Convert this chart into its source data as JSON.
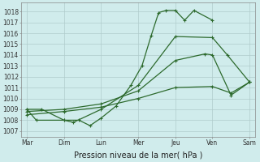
{
  "bg_color": "#d0ecec",
  "grid_color": "#b0cccc",
  "line_color": "#2d6a2d",
  "xlabel": "Pression niveau de la mer( hPa )",
  "xticks": [
    "Mar",
    "Dim",
    "Lun",
    "Mer",
    "Jeu",
    "Ven",
    "Sam"
  ],
  "ylim": [
    1006.5,
    1018.8
  ],
  "xlim": [
    -0.15,
    6.15
  ],
  "yticks": [
    1007,
    1008,
    1009,
    1010,
    1011,
    1012,
    1013,
    1014,
    1015,
    1016,
    1017,
    1018
  ],
  "line1_x": [
    0,
    0.25,
    1.0,
    1.4,
    1.7,
    2.0,
    2.4,
    2.8,
    3.1,
    3.35,
    3.55,
    3.75,
    4.0,
    4.25,
    4.5,
    5.0
  ],
  "line1_y": [
    1009.0,
    1008.0,
    1008.0,
    1008.0,
    1007.5,
    1008.2,
    1009.3,
    1011.2,
    1013.0,
    1015.8,
    1017.9,
    1018.1,
    1018.1,
    1017.2,
    1018.1,
    1017.2
  ],
  "line2_x": [
    0,
    0.4,
    1.0,
    1.25,
    2.0,
    3.0,
    4.0,
    5.0,
    5.4,
    6.0
  ],
  "line2_y": [
    1009.0,
    1009.0,
    1008.0,
    1007.8,
    1009.0,
    1011.2,
    1015.7,
    1015.6,
    1014.0,
    1011.5
  ],
  "line3_x": [
    0,
    1.0,
    2.0,
    3.0,
    4.0,
    4.8,
    5.0,
    5.5,
    6.0
  ],
  "line3_y": [
    1008.8,
    1009.0,
    1009.5,
    1010.7,
    1013.5,
    1014.1,
    1014.0,
    1010.3,
    1011.5
  ],
  "line4_x": [
    0,
    1.0,
    2.0,
    3.0,
    4.0,
    5.0,
    5.5,
    6.0
  ],
  "line4_y": [
    1008.5,
    1008.8,
    1009.2,
    1010.0,
    1011.0,
    1011.1,
    1010.5,
    1011.5
  ]
}
